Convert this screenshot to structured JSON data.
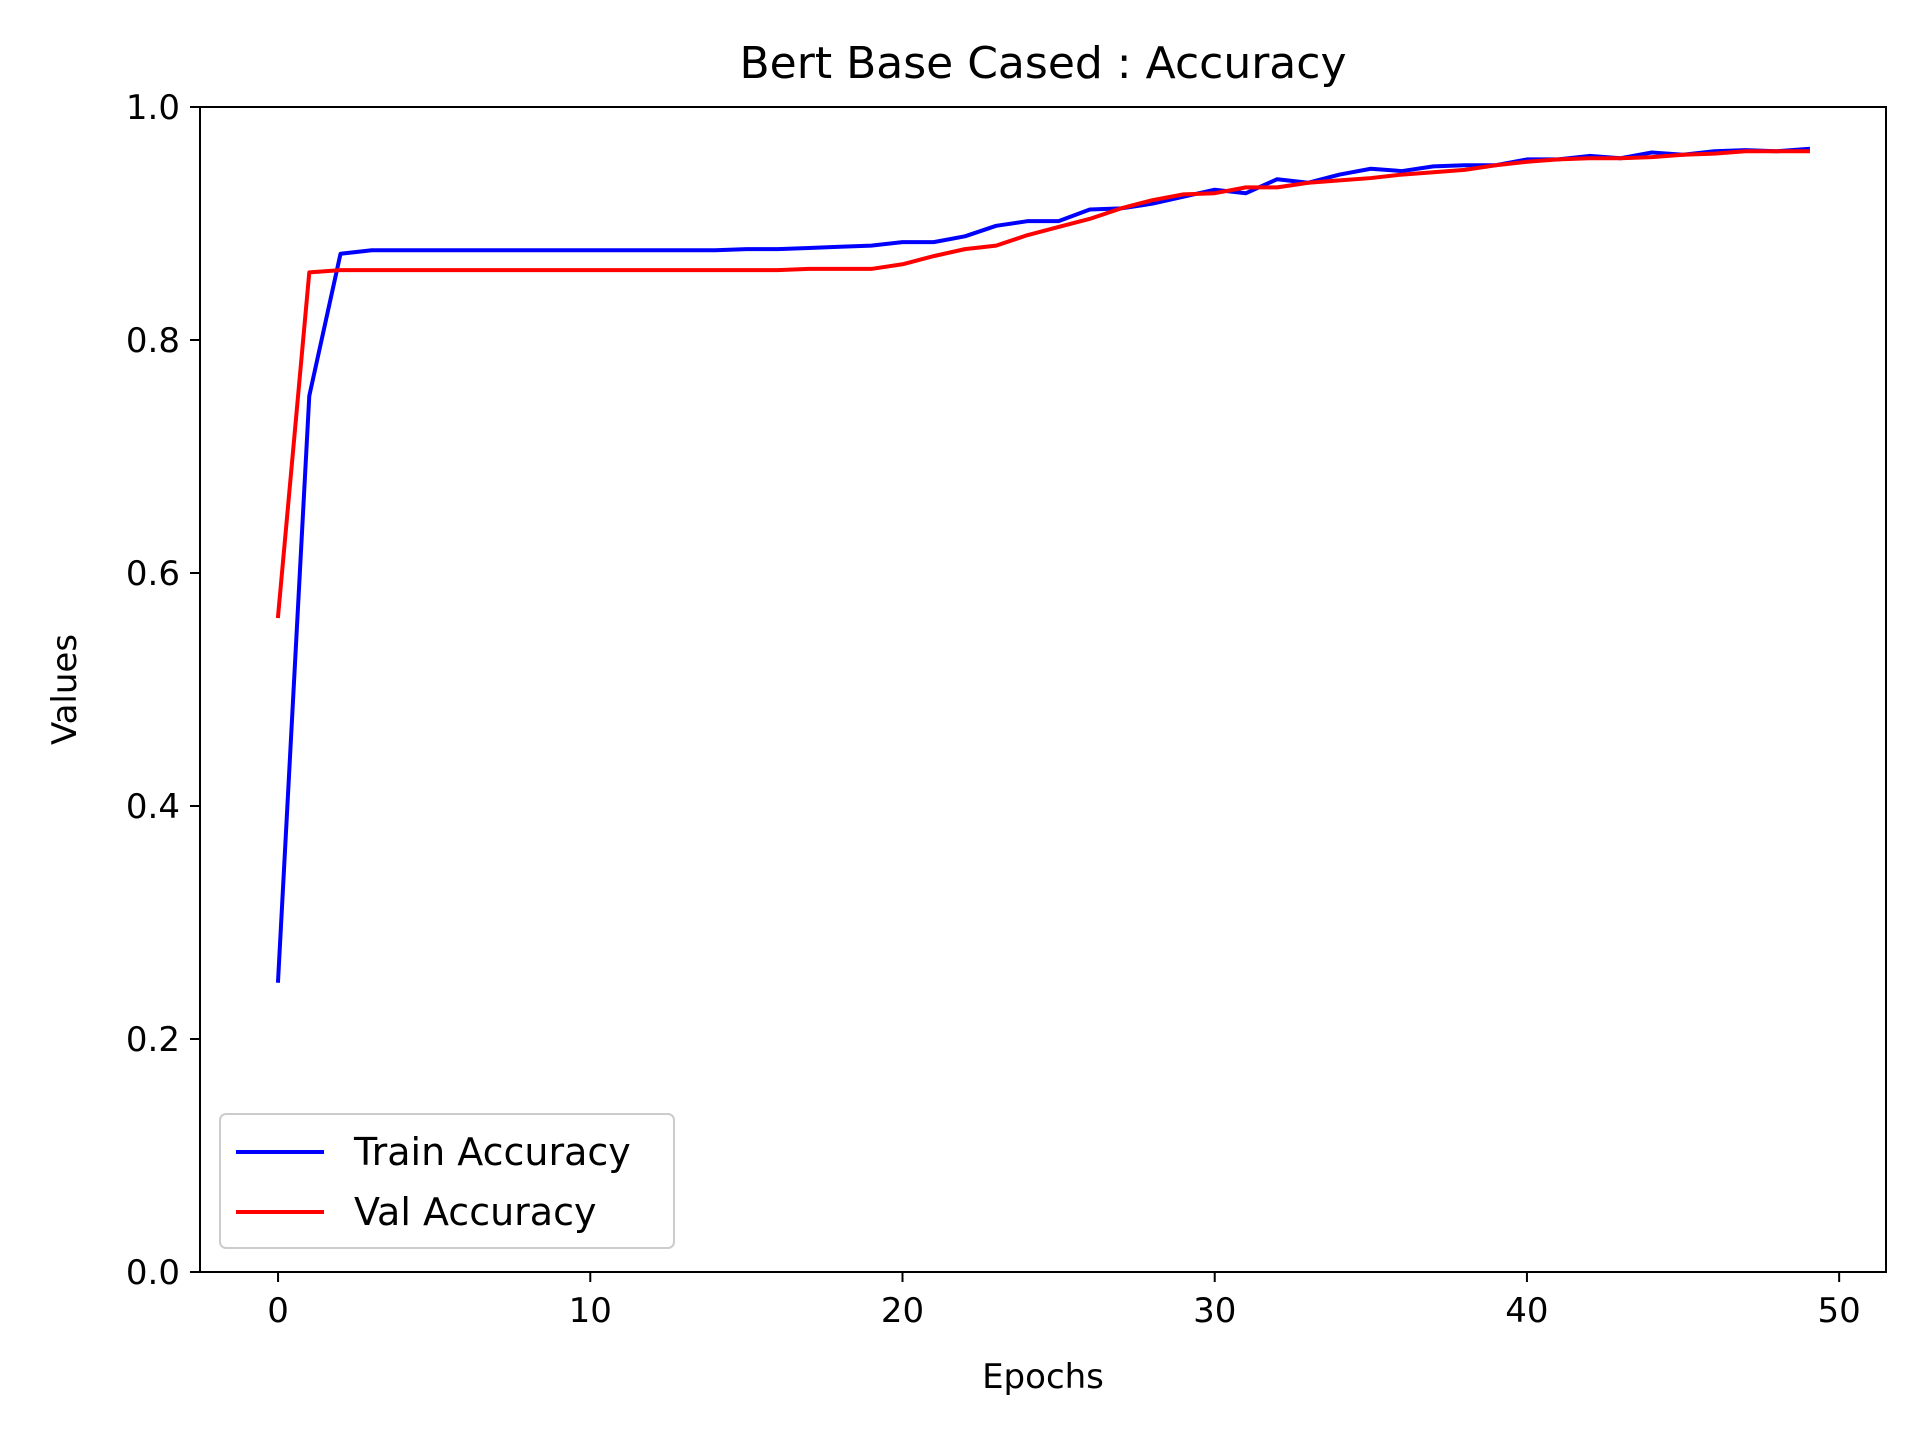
{
  "chart_data": {
    "type": "line",
    "title": "Bert Base Cased : Accuracy",
    "xlabel": "Epochs",
    "ylabel": "Values",
    "xlim": [
      -2.5,
      51.5
    ],
    "ylim": [
      0.0,
      1.0
    ],
    "xticks": [
      "0",
      "10",
      "20",
      "30",
      "40",
      "50"
    ],
    "yticks": [
      "0.0",
      "0.2",
      "0.4",
      "0.6",
      "0.8",
      "1.0"
    ],
    "grid": false,
    "legend_position": "lower-left",
    "x": [
      0,
      1,
      2,
      3,
      4,
      5,
      6,
      7,
      8,
      9,
      10,
      11,
      12,
      13,
      14,
      15,
      16,
      17,
      18,
      19,
      20,
      21,
      22,
      23,
      24,
      25,
      26,
      27,
      28,
      29,
      30,
      31,
      32,
      33,
      34,
      35,
      36,
      37,
      38,
      39,
      40,
      41,
      42,
      43,
      44,
      45,
      46,
      47,
      48,
      49
    ],
    "series": [
      {
        "name": "Train Accuracy",
        "color": "#0000ff",
        "values": [
          0.25,
          0.752,
          0.874,
          0.877,
          0.877,
          0.877,
          0.877,
          0.877,
          0.877,
          0.877,
          0.877,
          0.877,
          0.877,
          0.877,
          0.877,
          0.878,
          0.878,
          0.879,
          0.88,
          0.881,
          0.884,
          0.884,
          0.889,
          0.898,
          0.902,
          0.902,
          0.912,
          0.913,
          0.917,
          0.923,
          0.929,
          0.926,
          0.938,
          0.935,
          0.942,
          0.947,
          0.945,
          0.949,
          0.95,
          0.95,
          0.955,
          0.955,
          0.958,
          0.956,
          0.961,
          0.959,
          0.962,
          0.963,
          0.962,
          0.964
        ]
      },
      {
        "name": "Val Accuracy",
        "color": "#ff0000",
        "values": [
          0.563,
          0.858,
          0.86,
          0.86,
          0.86,
          0.86,
          0.86,
          0.86,
          0.86,
          0.86,
          0.86,
          0.86,
          0.86,
          0.86,
          0.86,
          0.86,
          0.86,
          0.861,
          0.861,
          0.861,
          0.865,
          0.872,
          0.878,
          0.881,
          0.89,
          0.897,
          0.904,
          0.913,
          0.92,
          0.925,
          0.926,
          0.931,
          0.931,
          0.935,
          0.937,
          0.939,
          0.942,
          0.944,
          0.946,
          0.95,
          0.953,
          0.955,
          0.956,
          0.956,
          0.957,
          0.959,
          0.96,
          0.962,
          0.962,
          0.962
        ]
      }
    ]
  }
}
